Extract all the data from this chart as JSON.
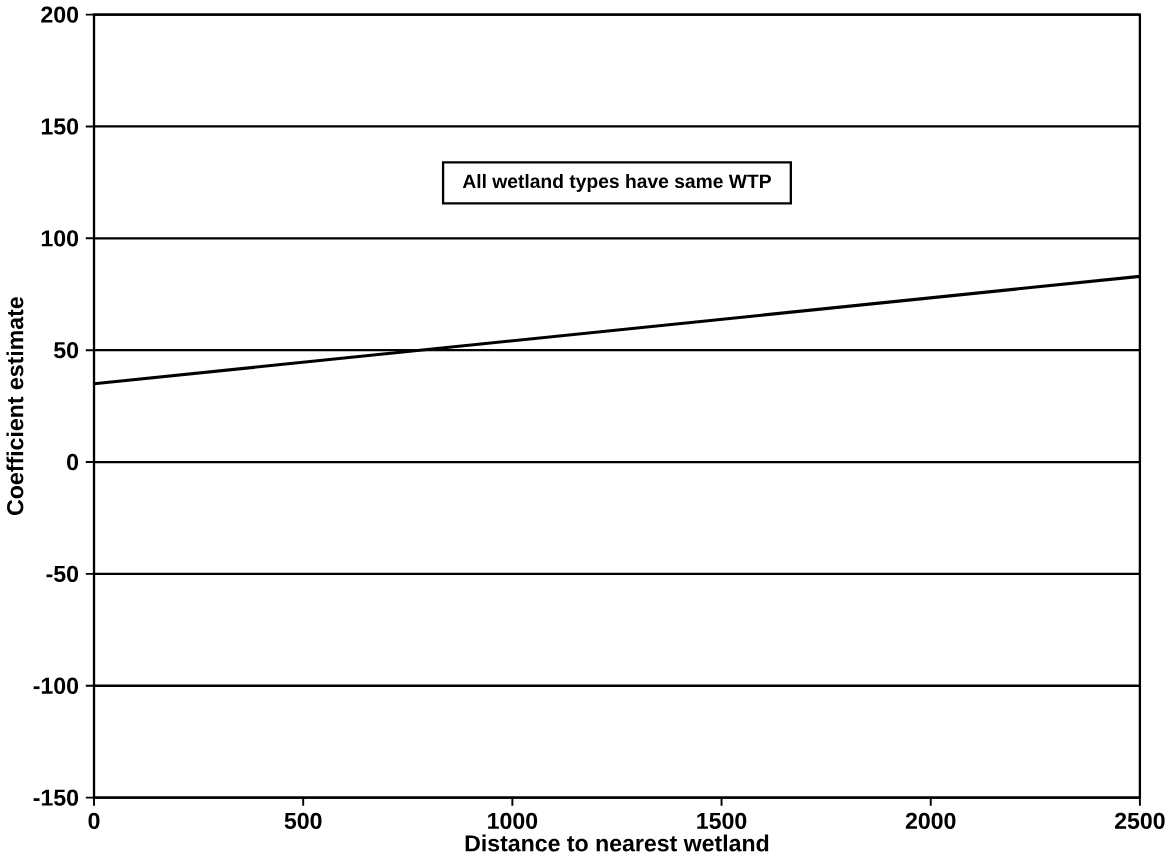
{
  "chart_data": {
    "type": "line",
    "xlabel": "Distance to nearest wetland",
    "ylabel": "Coefficient estimate",
    "annotations": [
      "All wetland types have same WTP"
    ],
    "x": [
      0,
      2500
    ],
    "series": [
      {
        "color": "#000000",
        "values": [
          35,
          83
        ]
      }
    ],
    "xlim": [
      0,
      2500
    ],
    "ylim": [
      -150,
      200
    ],
    "xticks": [
      0,
      500,
      1000,
      1500,
      2000,
      2500
    ],
    "yticks": [
      -150,
      -100,
      -50,
      0,
      50,
      100,
      150,
      200
    ],
    "grid": "y",
    "marker": "none",
    "line_style": "solid"
  }
}
